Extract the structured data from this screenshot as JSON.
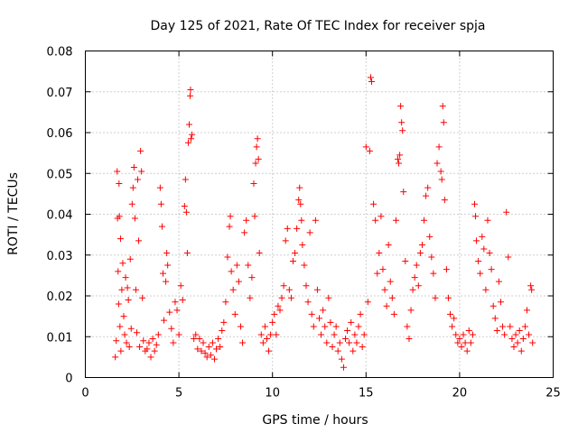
{
  "chart_data": {
    "type": "scatter",
    "title": "Day 125 of 2021, Rate Of TEC Index for receiver spja",
    "xlabel": "GPS time / hours",
    "ylabel": "ROTI / TECUs",
    "xlim": [
      0,
      25
    ],
    "ylim": [
      0,
      0.08
    ],
    "x_ticks": [
      0,
      5,
      10,
      15,
      20,
      25
    ],
    "x_tick_labels": [
      "0",
      "5",
      "10",
      "15",
      "20",
      "25"
    ],
    "y_ticks": [
      0,
      0.01,
      0.02,
      0.03,
      0.04,
      0.05,
      0.06,
      0.07,
      0.08
    ],
    "y_tick_labels": [
      "0",
      "0.01",
      "0.02",
      "0.03",
      "0.04",
      "0.05",
      "0.06",
      "0.07",
      "0.08"
    ],
    "grid": true,
    "marker": "+",
    "color": "#ff0000",
    "series": [
      {
        "points": [
          [
            1.6,
            0.005
          ],
          [
            1.65,
            0.009
          ],
          [
            1.7,
            0.0505
          ],
          [
            1.72,
            0.039
          ],
          [
            1.75,
            0.026
          ],
          [
            1.78,
            0.018
          ],
          [
            1.8,
            0.0475
          ],
          [
            1.82,
            0.0395
          ],
          [
            1.85,
            0.0125
          ],
          [
            1.88,
            0.034
          ],
          [
            1.9,
            0.0065
          ],
          [
            1.95,
            0.0215
          ],
          [
            2.0,
            0.028
          ],
          [
            2.05,
            0.015
          ],
          [
            2.1,
            0.0105
          ],
          [
            2.15,
            0.0245
          ],
          [
            2.2,
            0.0085
          ],
          [
            2.25,
            0.022
          ],
          [
            2.3,
            0.019
          ],
          [
            2.35,
            0.0075
          ],
          [
            2.4,
            0.029
          ],
          [
            2.45,
            0.012
          ],
          [
            2.5,
            0.0425
          ],
          [
            2.55,
            0.0465
          ],
          [
            2.6,
            0.0515
          ],
          [
            2.65,
            0.039
          ],
          [
            2.7,
            0.0215
          ],
          [
            2.75,
            0.011
          ],
          [
            2.8,
            0.0485
          ],
          [
            2.85,
            0.0335
          ],
          [
            2.9,
            0.0075
          ],
          [
            2.95,
            0.0555
          ],
          [
            3.0,
            0.0505
          ],
          [
            3.05,
            0.0195
          ],
          [
            3.1,
            0.009
          ],
          [
            3.2,
            0.0065
          ],
          [
            3.3,
            0.007
          ],
          [
            3.4,
            0.0085
          ],
          [
            3.5,
            0.005
          ],
          [
            3.6,
            0.0095
          ],
          [
            3.7,
            0.0065
          ],
          [
            3.8,
            0.008
          ],
          [
            3.9,
            0.0105
          ],
          [
            4.0,
            0.0465
          ],
          [
            4.05,
            0.0425
          ],
          [
            4.1,
            0.037
          ],
          [
            4.15,
            0.0255
          ],
          [
            4.2,
            0.014
          ],
          [
            4.3,
            0.0235
          ],
          [
            4.35,
            0.0305
          ],
          [
            4.4,
            0.0275
          ],
          [
            4.5,
            0.016
          ],
          [
            4.6,
            0.012
          ],
          [
            4.7,
            0.0085
          ],
          [
            4.8,
            0.0185
          ],
          [
            4.9,
            0.0165
          ],
          [
            5.0,
            0.0105
          ],
          [
            5.1,
            0.0225
          ],
          [
            5.2,
            0.019
          ],
          [
            5.3,
            0.042
          ],
          [
            5.35,
            0.0485
          ],
          [
            5.4,
            0.0405
          ],
          [
            5.45,
            0.0305
          ],
          [
            5.5,
            0.0575
          ],
          [
            5.55,
            0.062
          ],
          [
            5.6,
            0.069
          ],
          [
            5.62,
            0.0705
          ],
          [
            5.65,
            0.0585
          ],
          [
            5.7,
            0.0595
          ],
          [
            5.8,
            0.0095
          ],
          [
            5.9,
            0.0105
          ],
          [
            6.0,
            0.007
          ],
          [
            6.1,
            0.0095
          ],
          [
            6.2,
            0.0065
          ],
          [
            6.3,
            0.0085
          ],
          [
            6.4,
            0.006
          ],
          [
            6.5,
            0.005
          ],
          [
            6.6,
            0.0075
          ],
          [
            6.7,
            0.0055
          ],
          [
            6.8,
            0.0085
          ],
          [
            6.9,
            0.0045
          ],
          [
            7.0,
            0.007
          ],
          [
            7.1,
            0.0095
          ],
          [
            7.2,
            0.0075
          ],
          [
            7.3,
            0.0115
          ],
          [
            7.4,
            0.0135
          ],
          [
            7.5,
            0.0185
          ],
          [
            7.6,
            0.0295
          ],
          [
            7.7,
            0.037
          ],
          [
            7.75,
            0.0395
          ],
          [
            7.8,
            0.026
          ],
          [
            7.9,
            0.0215
          ],
          [
            8.0,
            0.0155
          ],
          [
            8.1,
            0.0275
          ],
          [
            8.2,
            0.0235
          ],
          [
            8.3,
            0.0125
          ],
          [
            8.4,
            0.0085
          ],
          [
            8.5,
            0.0355
          ],
          [
            8.6,
            0.0385
          ],
          [
            8.7,
            0.0275
          ],
          [
            8.8,
            0.0195
          ],
          [
            8.9,
            0.0245
          ],
          [
            9.0,
            0.0475
          ],
          [
            9.05,
            0.0395
          ],
          [
            9.1,
            0.0525
          ],
          [
            9.15,
            0.0565
          ],
          [
            9.2,
            0.0585
          ],
          [
            9.25,
            0.0535
          ],
          [
            9.3,
            0.0305
          ],
          [
            9.4,
            0.0105
          ],
          [
            9.5,
            0.0085
          ],
          [
            9.6,
            0.0125
          ],
          [
            9.7,
            0.0095
          ],
          [
            9.8,
            0.0065
          ],
          [
            9.9,
            0.0105
          ],
          [
            10.0,
            0.0135
          ],
          [
            10.1,
            0.0155
          ],
          [
            10.2,
            0.0105
          ],
          [
            10.3,
            0.0175
          ],
          [
            10.4,
            0.0165
          ],
          [
            10.5,
            0.0195
          ],
          [
            10.6,
            0.0225
          ],
          [
            10.7,
            0.0335
          ],
          [
            10.8,
            0.0365
          ],
          [
            10.9,
            0.0215
          ],
          [
            11.0,
            0.0195
          ],
          [
            11.1,
            0.0285
          ],
          [
            11.2,
            0.0305
          ],
          [
            11.3,
            0.0365
          ],
          [
            11.4,
            0.0435
          ],
          [
            11.45,
            0.0465
          ],
          [
            11.5,
            0.0425
          ],
          [
            11.55,
            0.0385
          ],
          [
            11.6,
            0.0325
          ],
          [
            11.7,
            0.0275
          ],
          [
            11.8,
            0.0225
          ],
          [
            11.9,
            0.0185
          ],
          [
            12.0,
            0.0355
          ],
          [
            12.1,
            0.0155
          ],
          [
            12.2,
            0.0125
          ],
          [
            12.3,
            0.0385
          ],
          [
            12.4,
            0.0215
          ],
          [
            12.5,
            0.0145
          ],
          [
            12.6,
            0.0105
          ],
          [
            12.7,
            0.0165
          ],
          [
            12.8,
            0.0125
          ],
          [
            12.9,
            0.0085
          ],
          [
            13.0,
            0.0195
          ],
          [
            13.1,
            0.0135
          ],
          [
            13.2,
            0.0075
          ],
          [
            13.3,
            0.0105
          ],
          [
            13.4,
            0.0125
          ],
          [
            13.5,
            0.0065
          ],
          [
            13.6,
            0.0085
          ],
          [
            13.7,
            0.0045
          ],
          [
            13.8,
            0.0025
          ],
          [
            13.9,
            0.0095
          ],
          [
            14.0,
            0.0115
          ],
          [
            14.1,
            0.0085
          ],
          [
            14.2,
            0.0135
          ],
          [
            14.3,
            0.0065
          ],
          [
            14.4,
            0.0105
          ],
          [
            14.5,
            0.0085
          ],
          [
            14.6,
            0.0125
          ],
          [
            14.7,
            0.0155
          ],
          [
            14.8,
            0.0075
          ],
          [
            14.9,
            0.0105
          ],
          [
            15.0,
            0.0565
          ],
          [
            15.1,
            0.0185
          ],
          [
            15.2,
            0.0555
          ],
          [
            15.25,
            0.0735
          ],
          [
            15.3,
            0.0725
          ],
          [
            15.4,
            0.0425
          ],
          [
            15.5,
            0.0385
          ],
          [
            15.6,
            0.0255
          ],
          [
            15.7,
            0.0305
          ],
          [
            15.8,
            0.0395
          ],
          [
            15.9,
            0.0265
          ],
          [
            16.0,
            0.0215
          ],
          [
            16.1,
            0.0175
          ],
          [
            16.2,
            0.0325
          ],
          [
            16.3,
            0.0235
          ],
          [
            16.4,
            0.0195
          ],
          [
            16.5,
            0.0155
          ],
          [
            16.6,
            0.0385
          ],
          [
            16.7,
            0.0535
          ],
          [
            16.75,
            0.0525
          ],
          [
            16.8,
            0.0545
          ],
          [
            16.85,
            0.0665
          ],
          [
            16.9,
            0.0625
          ],
          [
            16.95,
            0.0605
          ],
          [
            17.0,
            0.0455
          ],
          [
            17.1,
            0.0285
          ],
          [
            17.2,
            0.0125
          ],
          [
            17.3,
            0.0095
          ],
          [
            17.4,
            0.0165
          ],
          [
            17.5,
            0.0215
          ],
          [
            17.6,
            0.0245
          ],
          [
            17.7,
            0.0275
          ],
          [
            17.8,
            0.0225
          ],
          [
            17.9,
            0.0305
          ],
          [
            18.0,
            0.0325
          ],
          [
            18.1,
            0.0385
          ],
          [
            18.2,
            0.0445
          ],
          [
            18.3,
            0.0465
          ],
          [
            18.4,
            0.0345
          ],
          [
            18.5,
            0.0295
          ],
          [
            18.6,
            0.0255
          ],
          [
            18.7,
            0.0195
          ],
          [
            18.8,
            0.0525
          ],
          [
            18.9,
            0.0565
          ],
          [
            19.0,
            0.0505
          ],
          [
            19.05,
            0.0485
          ],
          [
            19.1,
            0.0665
          ],
          [
            19.15,
            0.0625
          ],
          [
            19.2,
            0.0435
          ],
          [
            19.3,
            0.0265
          ],
          [
            19.4,
            0.0195
          ],
          [
            19.5,
            0.0155
          ],
          [
            19.6,
            0.0125
          ],
          [
            19.7,
            0.0145
          ],
          [
            19.8,
            0.0105
          ],
          [
            19.9,
            0.0085
          ],
          [
            20.0,
            0.0095
          ],
          [
            20.1,
            0.0075
          ],
          [
            20.2,
            0.0105
          ],
          [
            20.3,
            0.0085
          ],
          [
            20.4,
            0.0065
          ],
          [
            20.5,
            0.0115
          ],
          [
            20.6,
            0.0085
          ],
          [
            20.7,
            0.0105
          ],
          [
            20.8,
            0.0425
          ],
          [
            20.85,
            0.0395
          ],
          [
            20.9,
            0.0335
          ],
          [
            21.0,
            0.0285
          ],
          [
            21.1,
            0.0255
          ],
          [
            21.2,
            0.0345
          ],
          [
            21.3,
            0.0315
          ],
          [
            21.4,
            0.0215
          ],
          [
            21.5,
            0.0385
          ],
          [
            21.6,
            0.0305
          ],
          [
            21.7,
            0.0265
          ],
          [
            21.8,
            0.0175
          ],
          [
            21.9,
            0.0145
          ],
          [
            22.0,
            0.0115
          ],
          [
            22.1,
            0.0235
          ],
          [
            22.2,
            0.0185
          ],
          [
            22.3,
            0.0125
          ],
          [
            22.4,
            0.0105
          ],
          [
            22.5,
            0.0405
          ],
          [
            22.6,
            0.0295
          ],
          [
            22.7,
            0.0125
          ],
          [
            22.8,
            0.0095
          ],
          [
            22.9,
            0.0075
          ],
          [
            23.0,
            0.0105
          ],
          [
            23.1,
            0.0085
          ],
          [
            23.2,
            0.0115
          ],
          [
            23.3,
            0.0065
          ],
          [
            23.4,
            0.0095
          ],
          [
            23.5,
            0.0125
          ],
          [
            23.6,
            0.0165
          ],
          [
            23.7,
            0.0105
          ],
          [
            23.8,
            0.0225
          ],
          [
            23.85,
            0.0215
          ],
          [
            23.9,
            0.0085
          ]
        ]
      }
    ]
  }
}
